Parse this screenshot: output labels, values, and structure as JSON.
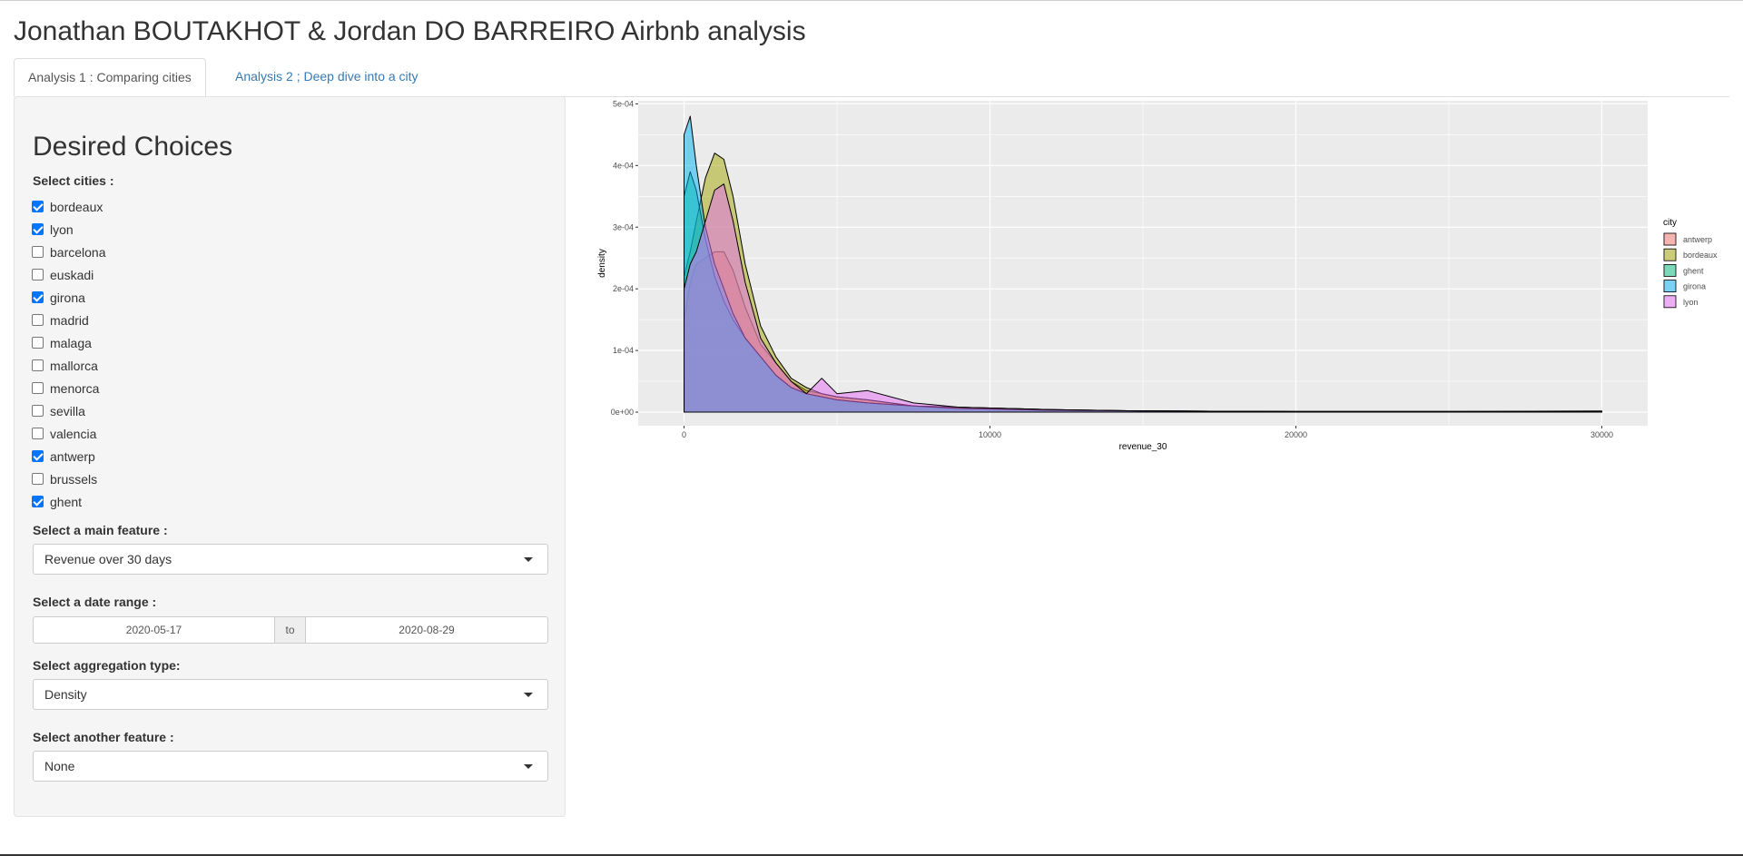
{
  "page": {
    "title": "Jonathan BOUTAKHOT & Jordan DO BARREIRO Airbnb analysis"
  },
  "tabs": [
    {
      "label": "Analysis 1 : Comparing cities",
      "active": true
    },
    {
      "label": "Analysis 2 ; Deep dive into a city",
      "active": false
    }
  ],
  "sidebar": {
    "title": "Desired Choices",
    "cities_label": "Select cities :",
    "cities": [
      {
        "name": "bordeaux",
        "checked": true
      },
      {
        "name": "lyon",
        "checked": true
      },
      {
        "name": "barcelona",
        "checked": false
      },
      {
        "name": "euskadi",
        "checked": false
      },
      {
        "name": "girona",
        "checked": true
      },
      {
        "name": "madrid",
        "checked": false
      },
      {
        "name": "malaga",
        "checked": false
      },
      {
        "name": "mallorca",
        "checked": false
      },
      {
        "name": "menorca",
        "checked": false
      },
      {
        "name": "sevilla",
        "checked": false
      },
      {
        "name": "valencia",
        "checked": false
      },
      {
        "name": "antwerp",
        "checked": true
      },
      {
        "name": "brussels",
        "checked": false
      },
      {
        "name": "ghent",
        "checked": true
      }
    ],
    "main_feature_label": "Select a main feature :",
    "main_feature_value": "Revenue over 30 days",
    "date_label": "Select a date range :",
    "date_from": "2020-05-17",
    "date_sep": "to",
    "date_to": "2020-08-29",
    "aggregation_label": "Select aggregation type:",
    "aggregation_value": "Density",
    "another_label": "Select another feature :",
    "another_value": "None"
  },
  "chart_data": {
    "type": "area",
    "xlabel": "revenue_30",
    "ylabel": "density",
    "xlim": [
      -1500,
      31500
    ],
    "ylim": [
      -2.2e-05,
      0.000505
    ],
    "x_ticks": [
      0,
      10000,
      20000,
      30000
    ],
    "x_tick_labels": [
      "0",
      "10000",
      "20000",
      "30000"
    ],
    "y_ticks": [
      0,
      0.0001,
      0.0002,
      0.0003,
      0.0004,
      0.0005
    ],
    "y_tick_labels": [
      "0e+00",
      "1e-04",
      "2e-04",
      "3e-04",
      "4e-04",
      "5e-04"
    ],
    "grid": true,
    "legend_title": "city",
    "legend_position": "right",
    "x": [
      0,
      200,
      400,
      700,
      1000,
      1300,
      1600,
      2000,
      2500,
      3000,
      3500,
      4000,
      4500,
      5000,
      6000,
      7500,
      9000,
      12000,
      15000,
      20000,
      25000,
      30000
    ],
    "series": [
      {
        "name": "antwerp",
        "color": "#F8766D",
        "values": [
          0.00015,
          0.00021,
          0.00024,
          0.00025,
          0.00026,
          0.00026,
          0.00023,
          0.00017,
          0.00011,
          8e-05,
          5e-05,
          3.5e-05,
          3e-05,
          2.5e-05,
          2e-05,
          1e-05,
          8e-06,
          4e-06,
          2e-06,
          1e-06,
          1e-06,
          5e-07
        ]
      },
      {
        "name": "bordeaux",
        "color": "#A3A500",
        "values": [
          0.00022,
          0.00026,
          0.00031,
          0.00038,
          0.00042,
          0.00041,
          0.00035,
          0.00024,
          0.00014,
          9e-05,
          5.5e-05,
          4e-05,
          3e-05,
          2.5e-05,
          2e-05,
          1e-05,
          8e-06,
          4e-06,
          2e-06,
          1e-06,
          1e-06,
          1e-06
        ]
      },
      {
        "name": "ghent",
        "color": "#00BF7D",
        "values": [
          0.00035,
          0.00039,
          0.00036,
          0.00028,
          0.00022,
          0.00018,
          0.00015,
          0.00012,
          9e-05,
          6e-05,
          4e-05,
          3e-05,
          2.5e-05,
          2e-05,
          1.5e-05,
          1e-05,
          6e-06,
          3e-06,
          2e-06,
          1e-06,
          1e-06,
          1e-06
        ]
      },
      {
        "name": "girona",
        "color": "#00B0F6",
        "values": [
          0.00045,
          0.00048,
          0.0004,
          0.0003,
          0.00024,
          0.0002,
          0.00016,
          0.00012,
          9e-05,
          6e-05,
          4e-05,
          3e-05,
          2.5e-05,
          2e-05,
          1.5e-05,
          1e-05,
          6e-06,
          3e-06,
          2e-06,
          1e-06,
          1e-06,
          2e-06
        ]
      },
      {
        "name": "lyon",
        "color": "#E76BF3",
        "values": [
          0.0002,
          0.00024,
          0.00026,
          0.00031,
          0.00036,
          0.00037,
          0.00031,
          0.00021,
          0.00012,
          8e-05,
          5e-05,
          3e-05,
          5.5e-05,
          3e-05,
          3.5e-05,
          1.5e-05,
          8e-06,
          4e-06,
          2e-06,
          1e-06,
          1e-06,
          1e-06
        ]
      }
    ]
  }
}
